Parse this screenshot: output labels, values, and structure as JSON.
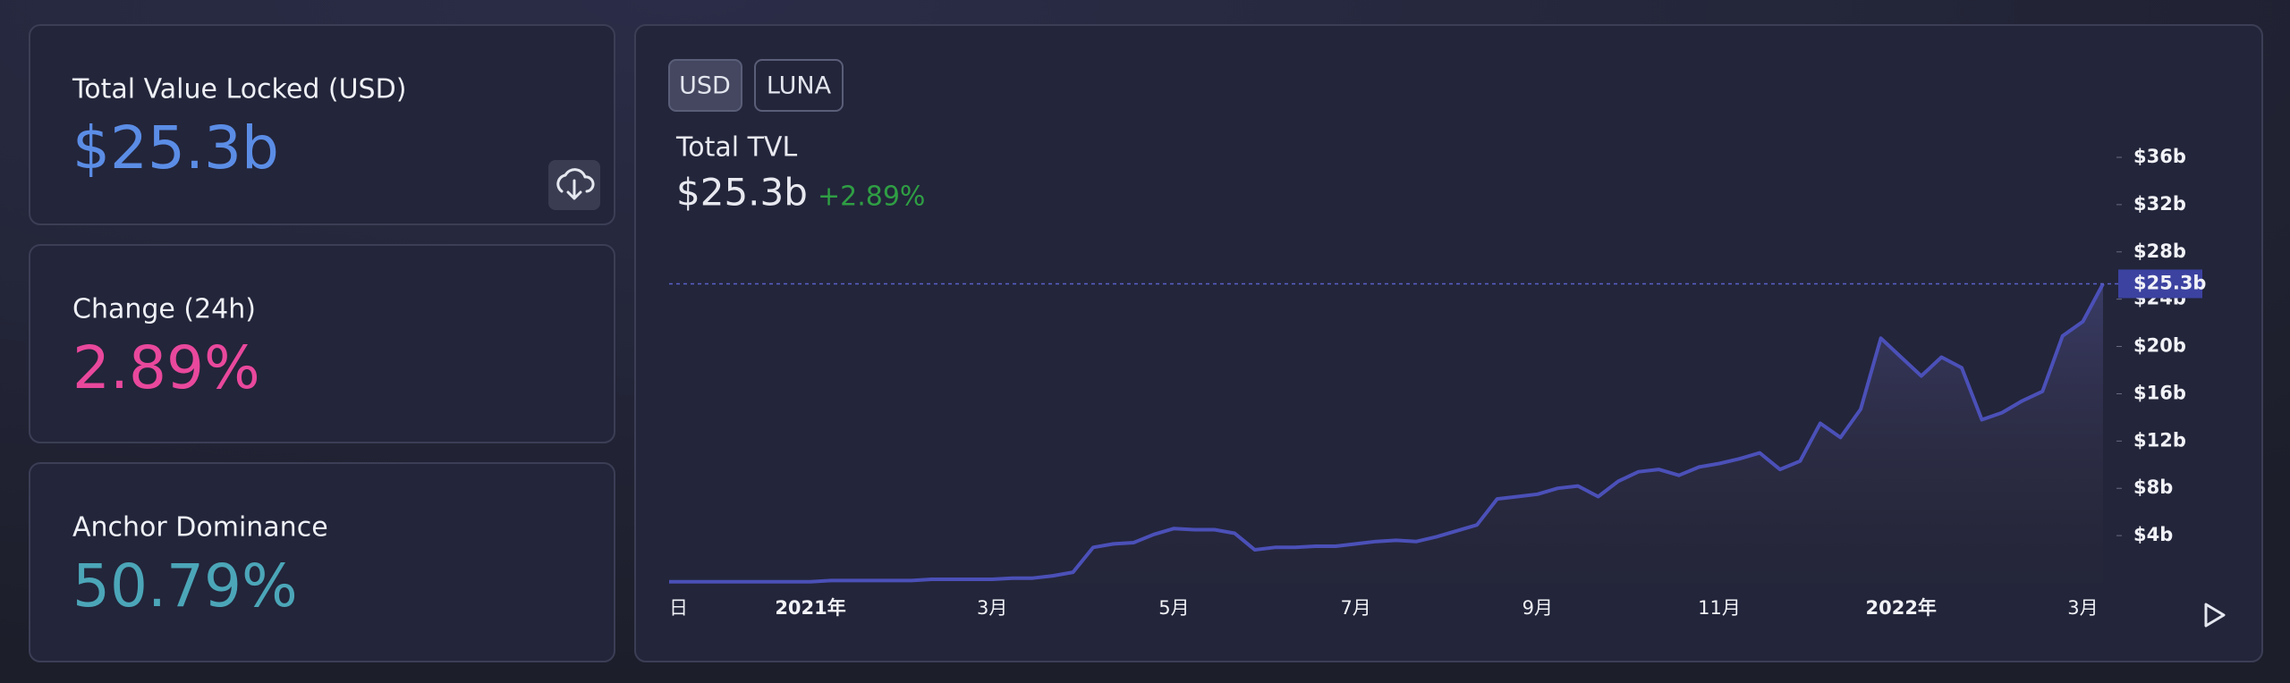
{
  "cards": [
    {
      "title": "Total Value Locked (USD)",
      "value": "$25.3b",
      "color": "#5b8de6"
    },
    {
      "title": "Change (24h)",
      "value": "2.89%",
      "color": "#e9489c"
    },
    {
      "title": "Anchor Dominance",
      "value": "50.79%",
      "color": "#4ba6b8"
    }
  ],
  "toggles": [
    "USD",
    "LUNA"
  ],
  "chart_data": {
    "type": "area",
    "title": "Total TVL",
    "current_value": "$25.3b",
    "change": "+2.89%",
    "color": "#4b50b8",
    "categories": [
      "日",
      null,
      null,
      null,
      null,
      null,
      null,
      "2021年",
      null,
      null,
      null,
      null,
      null,
      null,
      null,
      null,
      "3月",
      null,
      null,
      null,
      null,
      null,
      null,
      null,
      null,
      "5月",
      null,
      null,
      null,
      null,
      null,
      null,
      null,
      null,
      "7月",
      null,
      null,
      null,
      null,
      null,
      null,
      null,
      null,
      "9月",
      null,
      null,
      null,
      null,
      null,
      null,
      null,
      null,
      "11月",
      null,
      null,
      null,
      null,
      null,
      null,
      null,
      null,
      "2022年",
      null,
      null,
      null,
      null,
      null,
      null,
      null,
      null,
      "3月",
      null
    ],
    "values": [
      0.1,
      0.1,
      0.1,
      0.1,
      0.1,
      0.1,
      0.1,
      0.1,
      0.2,
      0.2,
      0.2,
      0.2,
      0.2,
      0.3,
      0.3,
      0.3,
      0.3,
      0.4,
      0.4,
      0.6,
      0.9,
      3.0,
      3.3,
      3.4,
      4.1,
      4.6,
      4.5,
      4.5,
      4.2,
      2.8,
      3.0,
      3.0,
      3.1,
      3.1,
      3.3,
      3.5,
      3.6,
      3.5,
      3.9,
      4.4,
      4.9,
      7.1,
      7.3,
      7.5,
      8.0,
      8.2,
      7.3,
      8.6,
      9.4,
      9.6,
      9.1,
      9.8,
      10.1,
      10.5,
      11.0,
      9.6,
      10.3,
      13.5,
      12.3,
      14.7,
      20.7,
      19.1,
      17.5,
      19.1,
      18.2,
      13.8,
      14.4,
      15.4,
      16.2,
      20.9,
      22.1,
      25.3
    ],
    "ylim": [
      0,
      36
    ],
    "yticks": [
      {
        "value": 4,
        "label": "$4b"
      },
      {
        "value": 8,
        "label": "$8b"
      },
      {
        "value": 12,
        "label": "$12b"
      },
      {
        "value": 16,
        "label": "$16b"
      },
      {
        "value": 20,
        "label": "$20b"
      },
      {
        "value": 24,
        "label": "$24b"
      },
      {
        "value": 28,
        "label": "$28b"
      },
      {
        "value": 32,
        "label": "$32b"
      },
      {
        "value": 36,
        "label": "$36b"
      }
    ],
    "price_line": {
      "value": 25.3,
      "label": "$25.3b"
    }
  }
}
